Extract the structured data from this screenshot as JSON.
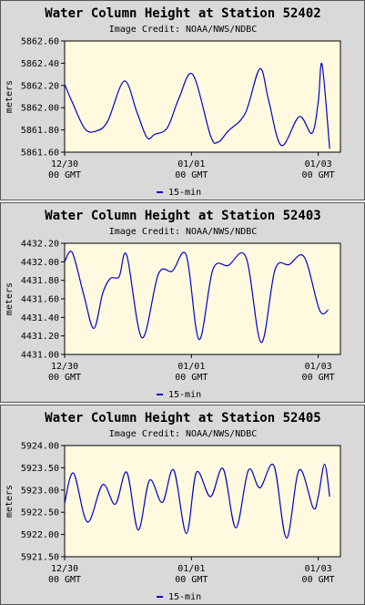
{
  "chart_data": [
    {
      "type": "line",
      "title": "Water Column Height at Station 52402",
      "subtitle": "Image Credit: NOAA/NWS/NDBC",
      "ylabel": "meters",
      "ylim": [
        5861.6,
        5862.6
      ],
      "yticks": [
        5861.6,
        5861.8,
        5862.0,
        5862.2,
        5862.4,
        5862.6
      ],
      "ytick_labels": [
        "5861.60",
        "5861.80",
        "5862.00",
        "5862.20",
        "5862.40",
        "5862.60"
      ],
      "xlim": [
        0,
        4.35
      ],
      "xticks": [
        {
          "x": 0,
          "line1": "12/30",
          "line2": "00 GMT"
        },
        {
          "x": 2,
          "line1": "01/01",
          "line2": "00 GMT"
        },
        {
          "x": 4,
          "line1": "01/03",
          "line2": "00 GMT"
        }
      ],
      "x_unit": "days since 12/30 00 GMT",
      "legend": "15-min",
      "color": "#0000cc",
      "series": [
        {
          "name": "15-min",
          "x": [
            0.0,
            0.12,
            0.32,
            0.5,
            0.68,
            0.94,
            1.14,
            1.3,
            1.42,
            1.62,
            1.8,
            2.02,
            2.3,
            2.42,
            2.58,
            2.85,
            3.08,
            3.22,
            3.42,
            3.7,
            3.9,
            4.0,
            4.06,
            4.18
          ],
          "y": [
            5862.21,
            5862.05,
            5861.81,
            5861.79,
            5861.88,
            5862.24,
            5861.96,
            5861.73,
            5861.76,
            5861.82,
            5862.08,
            5862.3,
            5861.75,
            5861.69,
            5861.79,
            5861.95,
            5862.35,
            5862.06,
            5861.66,
            5861.92,
            5861.77,
            5862.05,
            5862.39,
            5861.63
          ]
        }
      ]
    },
    {
      "type": "line",
      "title": "Water Column Height at Station 52403",
      "subtitle": "Image Credit: NOAA/NWS/NDBC",
      "ylabel": "meters",
      "ylim": [
        4431.0,
        4432.2
      ],
      "yticks": [
        4431.0,
        4431.2,
        4431.4,
        4431.6,
        4431.8,
        4432.0,
        4432.2
      ],
      "ytick_labels": [
        "4431.00",
        "4431.20",
        "4431.40",
        "4431.60",
        "4431.80",
        "4432.00",
        "4432.20"
      ],
      "xlim": [
        0,
        4.35
      ],
      "xticks": [
        {
          "x": 0,
          "line1": "12/30",
          "line2": "00 GMT"
        },
        {
          "x": 2,
          "line1": "01/01",
          "line2": "00 GMT"
        },
        {
          "x": 4,
          "line1": "01/03",
          "line2": "00 GMT"
        }
      ],
      "x_unit": "days since 12/30 00 GMT",
      "legend": "15-min",
      "color": "#0000cc",
      "series": [
        {
          "name": "15-min",
          "x": [
            0.0,
            0.12,
            0.3,
            0.46,
            0.6,
            0.72,
            0.86,
            0.98,
            1.22,
            1.48,
            1.7,
            1.92,
            2.12,
            2.34,
            2.58,
            2.86,
            3.1,
            3.32,
            3.54,
            3.78,
            4.02,
            4.16
          ],
          "y": [
            4432.0,
            4432.1,
            4431.65,
            4431.28,
            4431.66,
            4431.82,
            4431.84,
            4432.07,
            4431.18,
            4431.87,
            4431.9,
            4432.07,
            4431.16,
            4431.92,
            4431.96,
            4432.05,
            4431.13,
            4431.92,
            4431.97,
            4432.05,
            4431.48,
            4431.48
          ]
        }
      ]
    },
    {
      "type": "line",
      "title": "Water Column Height at Station 52405",
      "subtitle": "Image Credit: NOAA/NWS/NDBC",
      "ylabel": "meters",
      "ylim": [
        5921.5,
        5924.0
      ],
      "yticks": [
        5921.5,
        5922.0,
        5922.5,
        5923.0,
        5923.5,
        5924.0
      ],
      "ytick_labels": [
        "5921.50",
        "5922.00",
        "5922.50",
        "5923.00",
        "5923.50",
        "5924.00"
      ],
      "xlim": [
        0,
        4.35
      ],
      "xticks": [
        {
          "x": 0,
          "line1": "12/30",
          "line2": "00 GMT"
        },
        {
          "x": 2,
          "line1": "01/01",
          "line2": "00 GMT"
        },
        {
          "x": 4,
          "line1": "01/03",
          "line2": "00 GMT"
        }
      ],
      "x_unit": "days since 12/30 00 GMT",
      "legend": "15-min",
      "color": "#0000cc",
      "series": [
        {
          "name": "15-min",
          "x": [
            0.0,
            0.14,
            0.36,
            0.6,
            0.8,
            0.98,
            1.16,
            1.34,
            1.54,
            1.72,
            1.92,
            2.08,
            2.3,
            2.5,
            2.7,
            2.9,
            3.08,
            3.3,
            3.5,
            3.7,
            3.92,
            4.0,
            4.1,
            4.18
          ],
          "y": [
            5922.7,
            5923.38,
            5922.28,
            5923.12,
            5922.68,
            5923.4,
            5922.1,
            5923.22,
            5922.72,
            5923.45,
            5922.02,
            5923.4,
            5922.85,
            5923.48,
            5922.15,
            5923.45,
            5923.05,
            5923.55,
            5921.92,
            5923.45,
            5922.6,
            5922.85,
            5923.58,
            5922.85
          ]
        }
      ]
    }
  ]
}
